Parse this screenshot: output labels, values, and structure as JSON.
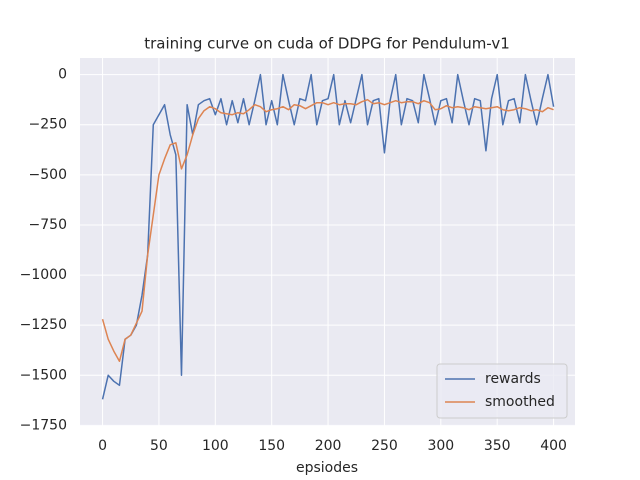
{
  "chart_data": {
    "type": "line",
    "title": "training curve on cuda of DDPG for Pendulum-v1",
    "x_label": "epsiodes",
    "x": [
      0,
      5,
      10,
      15,
      20,
      25,
      30,
      35,
      40,
      45,
      50,
      55,
      60,
      65,
      70,
      75,
      80,
      85,
      90,
      95,
      100,
      105,
      110,
      115,
      120,
      125,
      130,
      135,
      140,
      145,
      150,
      155,
      160,
      165,
      170,
      175,
      180,
      185,
      190,
      195,
      200,
      205,
      210,
      215,
      220,
      225,
      230,
      235,
      240,
      245,
      250,
      255,
      260,
      265,
      270,
      275,
      280,
      285,
      290,
      295,
      300,
      305,
      310,
      315,
      320,
      325,
      330,
      335,
      340,
      345,
      350,
      355,
      360,
      365,
      370,
      375,
      380,
      385,
      390,
      395,
      400
    ],
    "series": [
      {
        "name": "rewards",
        "color": "#4c72b0",
        "values": [
          -1620,
          -1500,
          -1530,
          -1550,
          -1320,
          -1300,
          -1250,
          -1100,
          -900,
          -250,
          -200,
          -150,
          -300,
          -400,
          -1500,
          -150,
          -300,
          -150,
          -130,
          -120,
          -200,
          -120,
          -250,
          -130,
          -240,
          -120,
          -250,
          -130,
          0,
          -250,
          -130,
          -250,
          0,
          -130,
          -250,
          -120,
          -130,
          0,
          -250,
          -130,
          -120,
          0,
          -250,
          -130,
          -240,
          -120,
          0,
          -250,
          -130,
          -120,
          -390,
          -130,
          0,
          -250,
          -120,
          -130,
          -240,
          0,
          -120,
          -250,
          -130,
          -120,
          -240,
          0,
          -130,
          -250,
          -120,
          -130,
          -380,
          -120,
          0,
          -250,
          -130,
          -120,
          -240,
          0,
          -130,
          -250,
          -120,
          0,
          -160
        ]
      },
      {
        "name": "smoothed",
        "color": "#dd8452",
        "values": [
          -1220,
          -1320,
          -1380,
          -1430,
          -1320,
          -1300,
          -1240,
          -1180,
          -900,
          -700,
          -500,
          -420,
          -350,
          -340,
          -470,
          -400,
          -300,
          -220,
          -180,
          -160,
          -170,
          -190,
          -195,
          -200,
          -190,
          -195,
          -175,
          -150,
          -160,
          -185,
          -175,
          -170,
          -160,
          -175,
          -150,
          -155,
          -170,
          -155,
          -140,
          -140,
          -150,
          -140,
          -150,
          -145,
          -145,
          -150,
          -135,
          -125,
          -145,
          -140,
          -150,
          -140,
          -130,
          -140,
          -135,
          -135,
          -145,
          -130,
          -140,
          -175,
          -170,
          -155,
          -165,
          -160,
          -165,
          -175,
          -160,
          -165,
          -170,
          -165,
          -160,
          -175,
          -180,
          -175,
          -165,
          -170,
          -180,
          -175,
          -185,
          -165,
          -175
        ]
      }
    ],
    "xlim": [
      -20,
      419
    ],
    "ylim": [
      -1753,
      83
    ],
    "xticks": [
      0,
      50,
      100,
      150,
      200,
      250,
      300,
      350,
      400
    ],
    "yticks": [
      {
        "value": -1750,
        "label": "−1750"
      },
      {
        "value": -1500,
        "label": "−1500"
      },
      {
        "value": -1250,
        "label": "−1250"
      },
      {
        "value": -1000,
        "label": "−1000"
      },
      {
        "value": -750,
        "label": "−750"
      },
      {
        "value": -500,
        "label": "−500"
      },
      {
        "value": -250,
        "label": "−250"
      },
      0
    ],
    "grid": true,
    "legend": "lower right"
  }
}
